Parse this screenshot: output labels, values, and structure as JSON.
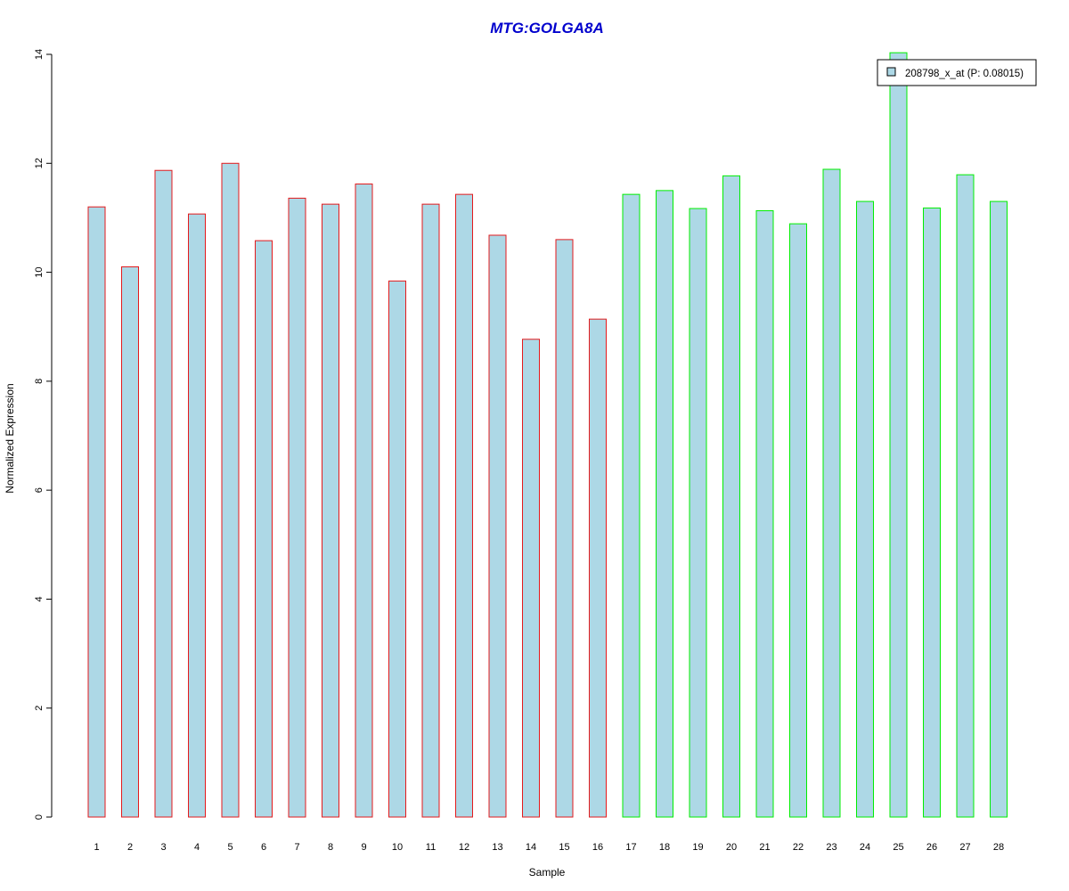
{
  "chart_data": {
    "type": "bar",
    "title": "MTG:GOLGA8A",
    "xlabel": "Sample",
    "ylabel": "Normalized Expression",
    "ylim": [
      0,
      14
    ],
    "yticks": [
      0,
      2,
      4,
      6,
      8,
      10,
      12,
      14
    ],
    "categories": [
      "1",
      "2",
      "3",
      "4",
      "5",
      "6",
      "7",
      "8",
      "9",
      "10",
      "11",
      "12",
      "13",
      "14",
      "15",
      "16",
      "17",
      "18",
      "19",
      "20",
      "21",
      "22",
      "23",
      "24",
      "25",
      "26",
      "27",
      "28"
    ],
    "series": [
      {
        "name": "208798_x_at (P: 0.08015)",
        "values": [
          11.2,
          10.1,
          11.87,
          11.07,
          12.0,
          10.58,
          11.36,
          11.25,
          11.62,
          9.84,
          11.25,
          11.43,
          10.68,
          8.77,
          10.6,
          9.14,
          11.43,
          11.5,
          11.17,
          11.77,
          11.13,
          10.89,
          11.89,
          11.3,
          14.03,
          11.18,
          11.79,
          11.3
        ]
      }
    ],
    "groups": [
      {
        "from": 0,
        "to": 15,
        "border_color": "#e41a1c"
      },
      {
        "from": 16,
        "to": 27,
        "border_color": "#00ee00"
      }
    ],
    "bar_fill": "#add8e6",
    "title_color": "#0000cd",
    "legend_position": "top-right",
    "grid": false
  }
}
